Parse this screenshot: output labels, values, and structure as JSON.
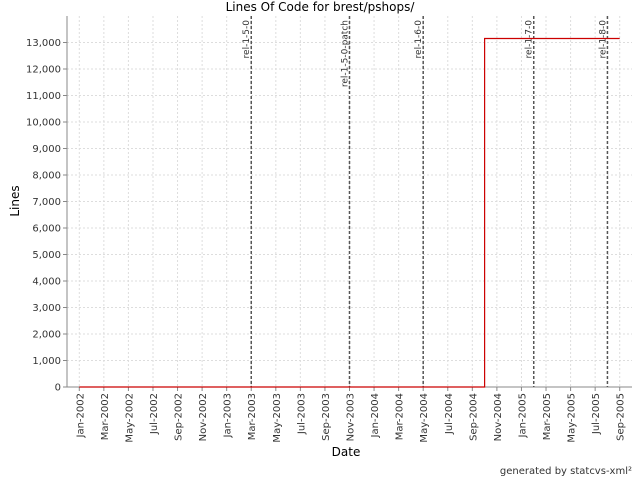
{
  "chart_data": {
    "type": "line",
    "title": "Lines Of Code for brest/pshops/",
    "x_label": "Date",
    "y_label": "Lines",
    "footer": "generated by statcvs-xml²",
    "x": [
      "2002-01",
      "2004-10",
      "2004-10",
      "2004-10",
      "2004-10",
      "2005-09"
    ],
    "values": [
      0,
      0,
      6200,
      6300,
      13150,
      13150
    ],
    "color": "#cc0000",
    "xlim": [
      "2001-12",
      "2005-10"
    ],
    "xticks": [
      {
        "value": "2002-01",
        "label": "Jan-2002"
      },
      {
        "value": "2002-03",
        "label": "Mar-2002"
      },
      {
        "value": "2002-05",
        "label": "May-2002"
      },
      {
        "value": "2002-07",
        "label": "Jul-2002"
      },
      {
        "value": "2002-09",
        "label": "Sep-2002"
      },
      {
        "value": "2002-11",
        "label": "Nov-2002"
      },
      {
        "value": "2003-01",
        "label": "Jan-2003"
      },
      {
        "value": "2003-03",
        "label": "Mar-2003"
      },
      {
        "value": "2003-05",
        "label": "May-2003"
      },
      {
        "value": "2003-07",
        "label": "Jul-2003"
      },
      {
        "value": "2003-09",
        "label": "Sep-2003"
      },
      {
        "value": "2003-11",
        "label": "Nov-2003"
      },
      {
        "value": "2004-01",
        "label": "Jan-2004"
      },
      {
        "value": "2004-03",
        "label": "Mar-2004"
      },
      {
        "value": "2004-05",
        "label": "May-2004"
      },
      {
        "value": "2004-07",
        "label": "Jul-2004"
      },
      {
        "value": "2004-09",
        "label": "Sep-2004"
      },
      {
        "value": "2004-11",
        "label": "Nov-2004"
      },
      {
        "value": "2005-01",
        "label": "Jan-2005"
      },
      {
        "value": "2005-03",
        "label": "Mar-2005"
      },
      {
        "value": "2005-05",
        "label": "May-2005"
      },
      {
        "value": "2005-07",
        "label": "Jul-2005"
      },
      {
        "value": "2005-09",
        "label": "Sep-2005"
      }
    ],
    "ylim": [
      0,
      14000
    ],
    "yticks": [
      0,
      {
        "value": 1000,
        "label": "1,000"
      },
      {
        "value": 2000,
        "label": "2,000"
      },
      {
        "value": 3000,
        "label": "3,000"
      },
      {
        "value": 4000,
        "label": "4,000"
      },
      {
        "value": 5000,
        "label": "5,000"
      },
      {
        "value": 6000,
        "label": "6,000"
      },
      {
        "value": 7000,
        "label": "7,000"
      },
      {
        "value": 8000,
        "label": "8,000"
      },
      {
        "value": 9000,
        "label": "9,000"
      },
      {
        "value": 10000,
        "label": "10,000"
      },
      {
        "value": 11000,
        "label": "11,000"
      },
      {
        "value": 12000,
        "label": "12,000"
      },
      {
        "value": 13000,
        "label": "13,000"
      }
    ],
    "grid": true,
    "markers": [
      {
        "label": "rel-1-5-0",
        "x": "2003-03"
      },
      {
        "label": "rel-1-5-0-patch",
        "x": "2003-11"
      },
      {
        "label": "rel-1-6-0",
        "x": "2004-05"
      },
      {
        "label": "rel-1-7-0",
        "x": "2005-02"
      },
      {
        "label": "rel-1-8-0",
        "x": "2005-08"
      }
    ]
  }
}
